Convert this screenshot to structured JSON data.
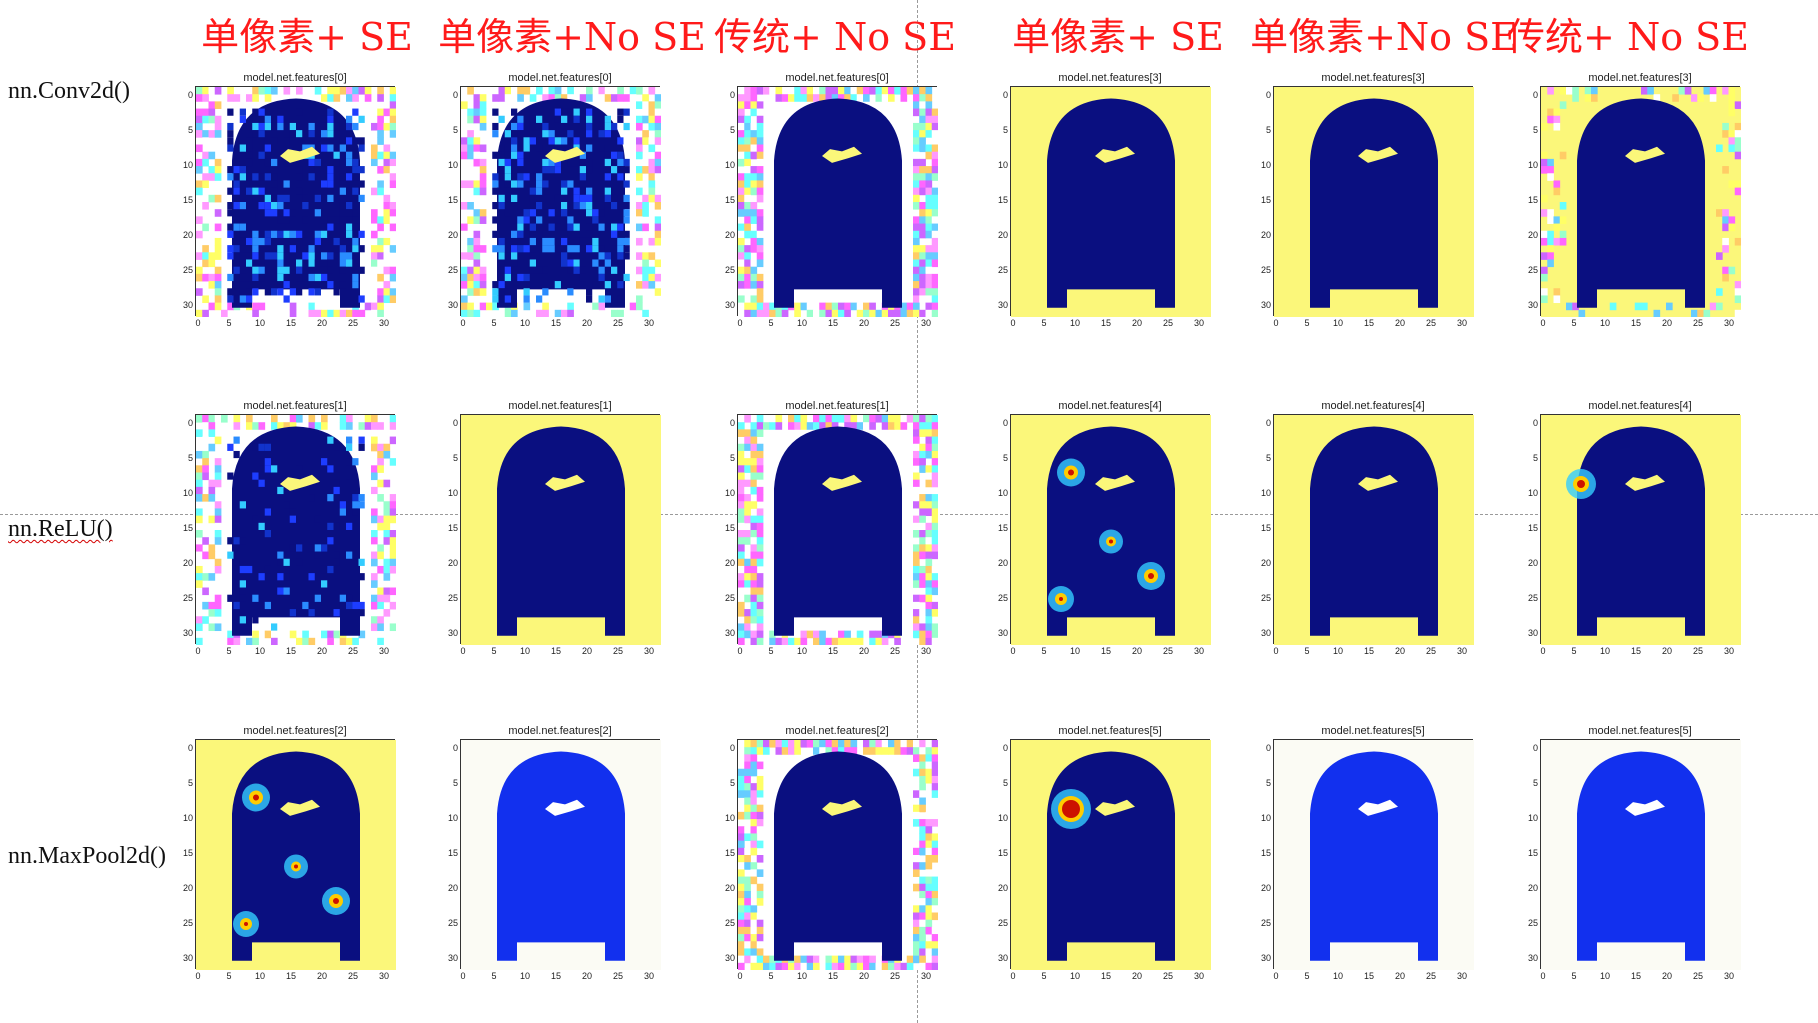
{
  "columns": [
    {
      "title": "单像素+ SE"
    },
    {
      "title": "单像素+No SE"
    },
    {
      "title": "传统+ No SE"
    },
    {
      "title": "单像素+ SE"
    },
    {
      "title": "单像素+No SE"
    },
    {
      "title": "传统+ No SE"
    }
  ],
  "rows": [
    {
      "label": "nn.Conv2d()"
    },
    {
      "label": "nn.ReLU()"
    },
    {
      "label": "nn.MaxPool2d()"
    }
  ],
  "panel_titles": [
    [
      "model.net.features[0]",
      "model.net.features[0]",
      "model.net.features[0]",
      "model.net.features[3]",
      "model.net.features[3]",
      "model.net.features[3]"
    ],
    [
      "model.net.features[1]",
      "model.net.features[1]",
      "model.net.features[1]",
      "model.net.features[4]",
      "model.net.features[4]",
      "model.net.features[4]"
    ],
    [
      "model.net.features[2]",
      "model.net.features[2]",
      "model.net.features[2]",
      "model.net.features[5]",
      "model.net.features[5]",
      "model.net.features[5]"
    ]
  ],
  "axis_ticks": [
    "0",
    "5",
    "10",
    "15",
    "20",
    "25",
    "30"
  ],
  "colors": {
    "title_red": "#ff1a1a",
    "navy": "#0a0f80",
    "yellow": "#fbf77a",
    "blue": "#1230ee",
    "offwhite": "#fbfbf4"
  }
}
